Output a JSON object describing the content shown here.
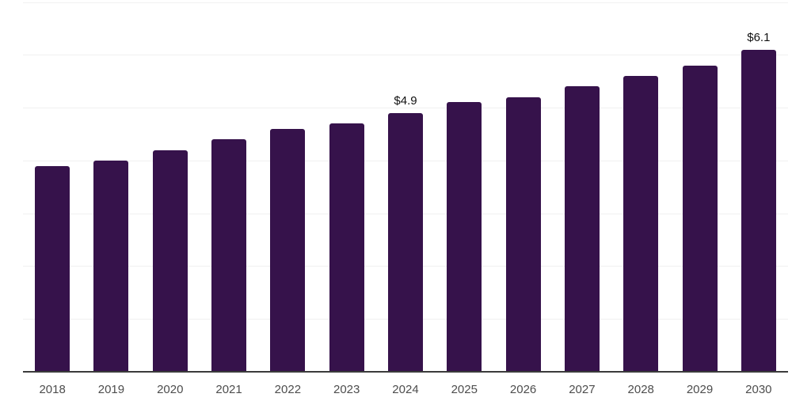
{
  "chart_data": {
    "type": "bar",
    "title": "",
    "xlabel": "",
    "ylabel": "",
    "categories": [
      "2018",
      "2019",
      "2020",
      "2021",
      "2022",
      "2023",
      "2024",
      "2025",
      "2026",
      "2027",
      "2028",
      "2029",
      "2030"
    ],
    "values": [
      3.9,
      4.0,
      4.2,
      4.4,
      4.6,
      4.7,
      4.9,
      5.1,
      5.2,
      5.4,
      5.6,
      5.8,
      6.1
    ],
    "point_labels": [
      "",
      "",
      "",
      "",
      "",
      "",
      "$4.9",
      "",
      "",
      "",
      "",
      "",
      "$6.1"
    ],
    "ylim": [
      0,
      7
    ],
    "grid_interval": 1,
    "grid": "horizontal-only",
    "y_axis_tick_labels_visible": false,
    "legend": "none",
    "colors": {
      "bar": "#36124B",
      "axis_line": "#3b3b3b",
      "gridline": "#f1f1f1",
      "x_tick_label": "#4d4d4d",
      "value_label": "#111111",
      "background": "#ffffff"
    }
  }
}
